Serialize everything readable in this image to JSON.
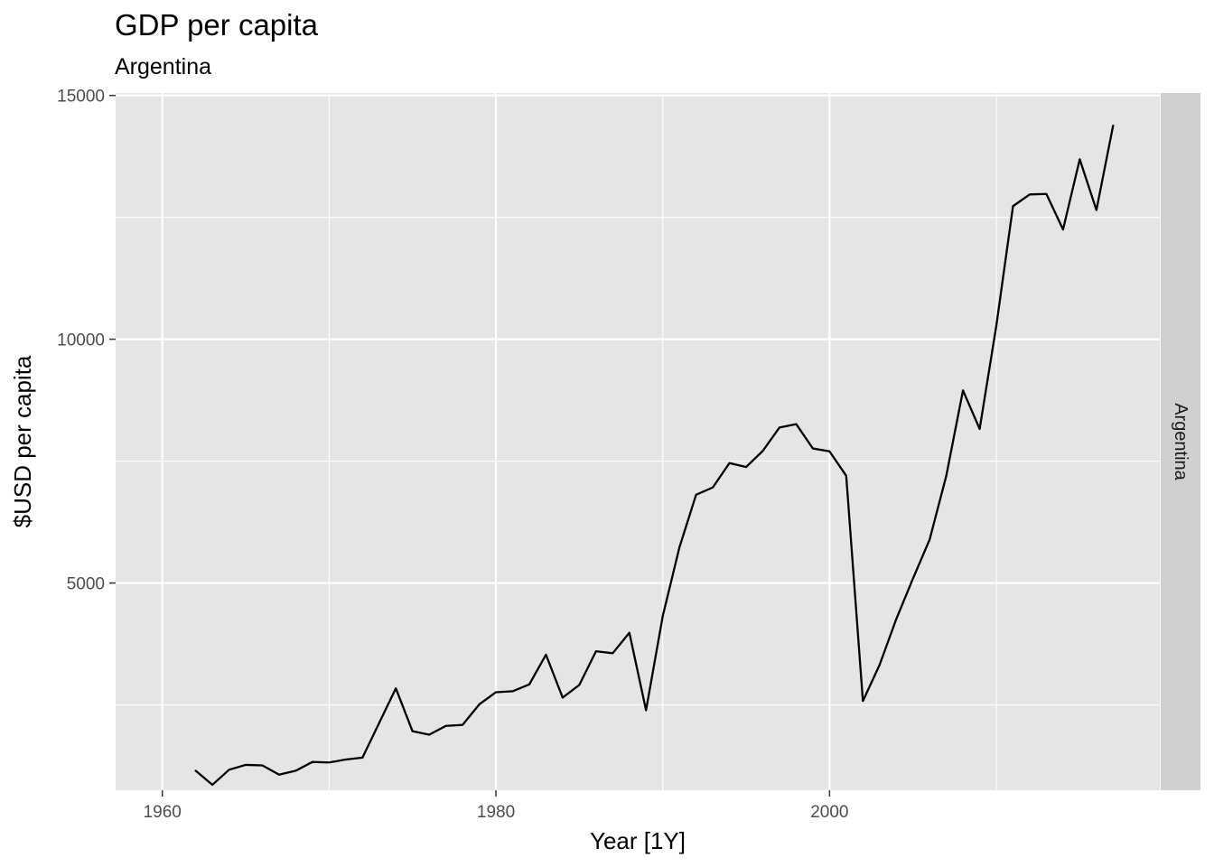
{
  "chart_data": {
    "type": "line",
    "title": "GDP per capita",
    "subtitle": "Argentina",
    "xlabel": "Year [1Y]",
    "ylabel": "$USD per capita",
    "facet_label": "Argentina",
    "xlim": [
      1957.2,
      2019.8
    ],
    "ylim": [
      750,
      15050
    ],
    "x_ticks": [
      1960,
      1980,
      2000
    ],
    "x_tick_labels": [
      "1960",
      "1980",
      "2000"
    ],
    "x_minor": [
      1970,
      1990,
      2010
    ],
    "y_ticks": [
      5000,
      10000,
      15000
    ],
    "y_tick_labels": [
      "5000",
      "10000",
      "15000"
    ],
    "y_minor": [
      2500,
      7500,
      12500
    ],
    "grid": true,
    "line_color": "#000000",
    "panel_color": "#e5e5e5",
    "strip_color": "#d0d0d0",
    "series": [
      {
        "x": [
          1962,
          1963,
          1964,
          1965,
          1966,
          1967,
          1968,
          1969,
          1970,
          1971,
          1972,
          1973,
          1974,
          1975,
          1976,
          1977,
          1978,
          1979,
          1980,
          1981,
          1982,
          1983,
          1984,
          1985,
          1986,
          1987,
          1988,
          1989,
          1990,
          1991,
          1992,
          1993,
          1994,
          1995,
          1996,
          1997,
          1998,
          1999,
          2000,
          2001,
          2002,
          2003,
          2004,
          2005,
          2006,
          2007,
          2008,
          2009,
          2010,
          2011,
          2012,
          2013,
          2014,
          2015,
          2016,
          2017
        ],
        "values": [
          1150,
          860,
          1170,
          1270,
          1260,
          1070,
          1150,
          1330,
          1320,
          1380,
          1420,
          2130,
          2840,
          1960,
          1890,
          2070,
          2090,
          2510,
          2760,
          2780,
          2920,
          3530,
          2650,
          2910,
          3600,
          3560,
          3980,
          2390,
          4320,
          5730,
          6810,
          6960,
          7460,
          7380,
          7710,
          8190,
          8260,
          7760,
          7700,
          7200,
          2580,
          3320,
          4260,
          5090,
          5890,
          7200,
          8950,
          8160,
          10280,
          12730,
          12970,
          12980,
          12250,
          13690,
          12650,
          14380
        ]
      }
    ]
  }
}
